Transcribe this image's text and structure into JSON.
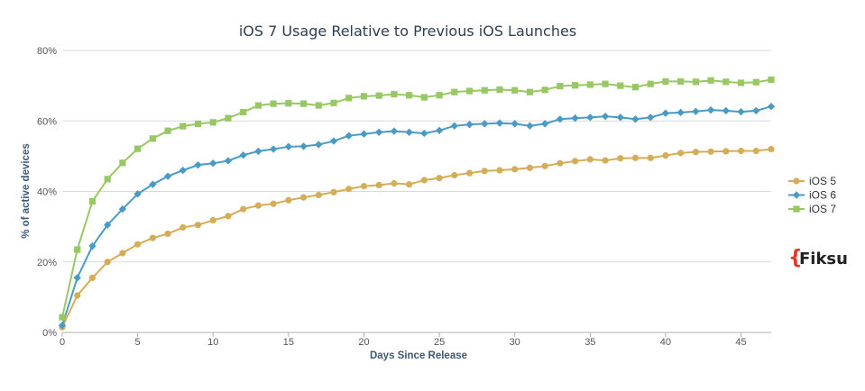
{
  "colors": {
    "ios5": "#d4ad59",
    "ios6": "#4a9bc4",
    "ios7": "#97c864",
    "grid": "#d9d9d9",
    "title": "#2c3e50",
    "axis_label": "#3d5a78",
    "logo_brace": "#e03a2f"
  },
  "logo": {
    "brace": "{",
    "text": "Fiksu"
  },
  "chart_data": {
    "type": "line",
    "title": "iOS 7 Usage Relative to Previous iOS Launches",
    "xlabel": "Days Since Release",
    "ylabel": "% of active devices",
    "xlim": [
      0,
      47
    ],
    "ylim": [
      0,
      80
    ],
    "x_ticks": [
      0,
      5,
      10,
      15,
      20,
      25,
      30,
      35,
      40,
      45
    ],
    "x_tick_labels": [
      "0",
      "5",
      "10",
      "15",
      "20",
      "25",
      "30",
      "35",
      "40",
      "45"
    ],
    "y_ticks": [
      0,
      20,
      40,
      60,
      80
    ],
    "y_tick_labels": [
      "0%",
      "20%",
      "40%",
      "60%",
      "80%"
    ],
    "grid": true,
    "legend_position": "right",
    "x": [
      0,
      1,
      2,
      3,
      4,
      5,
      6,
      7,
      8,
      9,
      10,
      11,
      12,
      13,
      14,
      15,
      16,
      17,
      18,
      19,
      20,
      21,
      22,
      23,
      24,
      25,
      26,
      27,
      28,
      29,
      30,
      31,
      32,
      33,
      34,
      35,
      36,
      37,
      38,
      39,
      40,
      41,
      42,
      43,
      44,
      45,
      46,
      47
    ],
    "series": [
      {
        "name": "iOS 5",
        "marker": "circle",
        "color_key": "ios5",
        "values": [
          1.5,
          10.5,
          15.5,
          20,
          22.5,
          25,
          26.8,
          28,
          29.8,
          30.5,
          31.8,
          33,
          35,
          36,
          36.5,
          37.5,
          38.3,
          39,
          39.8,
          40.7,
          41.5,
          41.8,
          42.3,
          42,
          43.2,
          43.8,
          44.6,
          45.2,
          45.8,
          46,
          46.3,
          46.7,
          47.2,
          48,
          48.6,
          49.1,
          48.8,
          49.4,
          49.5,
          49.5,
          50.2,
          50.9,
          51.2,
          51.3,
          51.4,
          51.5,
          51.5,
          52
        ]
      },
      {
        "name": "iOS 6",
        "marker": "diamond",
        "color_key": "ios6",
        "values": [
          2,
          15.5,
          24.5,
          30.5,
          35,
          39.3,
          42,
          44.3,
          46,
          47.5,
          48,
          48.7,
          50.3,
          51.4,
          52,
          52.7,
          52.8,
          53.3,
          54.3,
          55.8,
          56.3,
          56.8,
          57.1,
          56.8,
          56.5,
          57.3,
          58.6,
          59,
          59.2,
          59.4,
          59.2,
          58.6,
          59.2,
          60.5,
          60.8,
          61,
          61.3,
          61,
          60.5,
          61,
          62.2,
          62.4,
          62.7,
          63.1,
          62.9,
          62.6,
          62.9,
          64.1
        ]
      },
      {
        "name": "iOS 7",
        "marker": "square",
        "color_key": "ios7",
        "values": [
          4.3,
          23.5,
          37.2,
          43.5,
          48.1,
          52.1,
          55,
          57.2,
          58.5,
          59.2,
          59.6,
          60.8,
          62.5,
          64.4,
          64.9,
          65,
          64.9,
          64.4,
          65.1,
          66.5,
          67,
          67.2,
          67.6,
          67.3,
          66.7,
          67.3,
          68.2,
          68.5,
          68.7,
          68.9,
          68.7,
          68.2,
          68.8,
          69.9,
          70.1,
          70.3,
          70.5,
          70,
          69.6,
          70.5,
          71.2,
          71.2,
          71.1,
          71.5,
          71.1,
          70.8,
          71,
          71.7
        ]
      }
    ]
  }
}
